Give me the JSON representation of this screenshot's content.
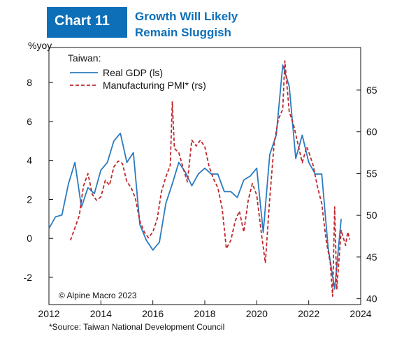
{
  "header": {
    "badge": "Chart 11",
    "title_line1": "Growth Will Likely",
    "title_line2": "Remain Sluggish"
  },
  "y_unit_label": "%yoy",
  "copyright": "© Alpine Macro 2023",
  "source": "*Source: Taiwan National Development Council",
  "colors": {
    "gdp": "#2a7bc0",
    "pmi": "#c0282d",
    "text": "#111111",
    "accent": "#0d6fb8"
  },
  "chart_data": {
    "type": "line",
    "legend_title": "Taiwan:",
    "legend_position": "top-left",
    "grid": false,
    "x_ticks": [
      "2012",
      "2014",
      "2016",
      "2018",
      "2020",
      "2022",
      "2024"
    ],
    "xlim": [
      2012,
      2024
    ],
    "y_left": {
      "ticks": [
        "-2",
        "0",
        "2",
        "4",
        "6",
        "8"
      ],
      "lim": [
        -3.4,
        9.8
      ]
    },
    "y_right": {
      "ticks": [
        "40",
        "45",
        "50",
        "55",
        "60",
        "65"
      ],
      "lim": [
        39.3,
        70.1
      ]
    },
    "series": [
      {
        "name": "Real GDP (ls)",
        "axis": "left",
        "style": "solid",
        "points": [
          [
            2012.0,
            0.5
          ],
          [
            2012.25,
            1.1
          ],
          [
            2012.5,
            1.2
          ],
          [
            2012.75,
            2.8
          ],
          [
            2013.0,
            3.9
          ],
          [
            2013.25,
            1.6
          ],
          [
            2013.5,
            2.6
          ],
          [
            2013.75,
            2.3
          ],
          [
            2014.0,
            3.5
          ],
          [
            2014.25,
            3.9
          ],
          [
            2014.5,
            5.0
          ],
          [
            2014.75,
            5.4
          ],
          [
            2015.0,
            3.9
          ],
          [
            2015.25,
            4.4
          ],
          [
            2015.5,
            0.7
          ],
          [
            2015.75,
            -0.1
          ],
          [
            2016.0,
            -0.6
          ],
          [
            2016.25,
            -0.2
          ],
          [
            2016.5,
            1.8
          ],
          [
            2016.75,
            2.8
          ],
          [
            2017.0,
            3.9
          ],
          [
            2017.25,
            3.4
          ],
          [
            2017.5,
            2.7
          ],
          [
            2017.75,
            3.3
          ],
          [
            2018.0,
            3.6
          ],
          [
            2018.25,
            3.3
          ],
          [
            2018.5,
            3.3
          ],
          [
            2018.75,
            2.4
          ],
          [
            2019.0,
            2.4
          ],
          [
            2019.25,
            2.1
          ],
          [
            2019.5,
            3.0
          ],
          [
            2019.75,
            3.2
          ],
          [
            2020.0,
            3.6
          ],
          [
            2020.25,
            0.3
          ],
          [
            2020.5,
            4.3
          ],
          [
            2020.75,
            5.3
          ],
          [
            2021.0,
            8.9
          ],
          [
            2021.25,
            7.8
          ],
          [
            2021.5,
            4.1
          ],
          [
            2021.75,
            5.3
          ],
          [
            2022.0,
            3.9
          ],
          [
            2022.25,
            3.3
          ],
          [
            2022.5,
            3.3
          ],
          [
            2022.75,
            -0.5
          ],
          [
            2023.0,
            -2.6
          ],
          [
            2023.25,
            1.0
          ]
        ]
      },
      {
        "name": "Manufacturing PMI* (rs)",
        "axis": "right",
        "style": "dashed",
        "points": [
          [
            2012.83,
            47.0
          ],
          [
            2013.0,
            48.5
          ],
          [
            2013.17,
            50.0
          ],
          [
            2013.33,
            53.5
          ],
          [
            2013.5,
            55.0
          ],
          [
            2013.67,
            52.5
          ],
          [
            2013.83,
            51.8
          ],
          [
            2014.0,
            52.2
          ],
          [
            2014.17,
            54.2
          ],
          [
            2014.33,
            53.6
          ],
          [
            2014.5,
            55.8
          ],
          [
            2014.67,
            56.5
          ],
          [
            2014.83,
            56.2
          ],
          [
            2015.0,
            54.0
          ],
          [
            2015.17,
            53.3
          ],
          [
            2015.33,
            52.0
          ],
          [
            2015.5,
            49.3
          ],
          [
            2015.67,
            48.0
          ],
          [
            2015.83,
            47.3
          ],
          [
            2016.0,
            48.0
          ],
          [
            2016.17,
            49.6
          ],
          [
            2016.33,
            52.8
          ],
          [
            2016.5,
            54.6
          ],
          [
            2016.67,
            56.0
          ],
          [
            2016.75,
            63.6
          ],
          [
            2016.83,
            58.0
          ],
          [
            2017.0,
            57.5
          ],
          [
            2017.17,
            55.6
          ],
          [
            2017.33,
            54.0
          ],
          [
            2017.5,
            59.0
          ],
          [
            2017.67,
            58.3
          ],
          [
            2017.83,
            59.0
          ],
          [
            2018.0,
            58.2
          ],
          [
            2018.17,
            55.8
          ],
          [
            2018.33,
            54.4
          ],
          [
            2018.5,
            53.3
          ],
          [
            2018.67,
            50.8
          ],
          [
            2018.83,
            46.0
          ],
          [
            2019.0,
            47.0
          ],
          [
            2019.17,
            49.3
          ],
          [
            2019.33,
            50.5
          ],
          [
            2019.5,
            48.0
          ],
          [
            2019.67,
            51.8
          ],
          [
            2019.83,
            53.8
          ],
          [
            2020.0,
            52.4
          ],
          [
            2020.17,
            48.0
          ],
          [
            2020.33,
            44.3
          ],
          [
            2020.5,
            52.0
          ],
          [
            2020.67,
            58.6
          ],
          [
            2020.83,
            61.5
          ],
          [
            2021.0,
            62.7
          ],
          [
            2021.08,
            68.5
          ],
          [
            2021.25,
            62.4
          ],
          [
            2021.42,
            60.8
          ],
          [
            2021.58,
            58.6
          ],
          [
            2021.75,
            56.3
          ],
          [
            2021.92,
            58.2
          ],
          [
            2022.0,
            57.6
          ],
          [
            2022.17,
            56.0
          ],
          [
            2022.33,
            53.5
          ],
          [
            2022.5,
            51.4
          ],
          [
            2022.67,
            47.0
          ],
          [
            2022.83,
            44.3
          ],
          [
            2022.92,
            40.3
          ],
          [
            2023.0,
            51.0
          ],
          [
            2023.08,
            41.1
          ],
          [
            2023.25,
            48.2
          ],
          [
            2023.42,
            46.4
          ],
          [
            2023.5,
            48.0
          ],
          [
            2023.58,
            47.1
          ]
        ]
      }
    ]
  }
}
